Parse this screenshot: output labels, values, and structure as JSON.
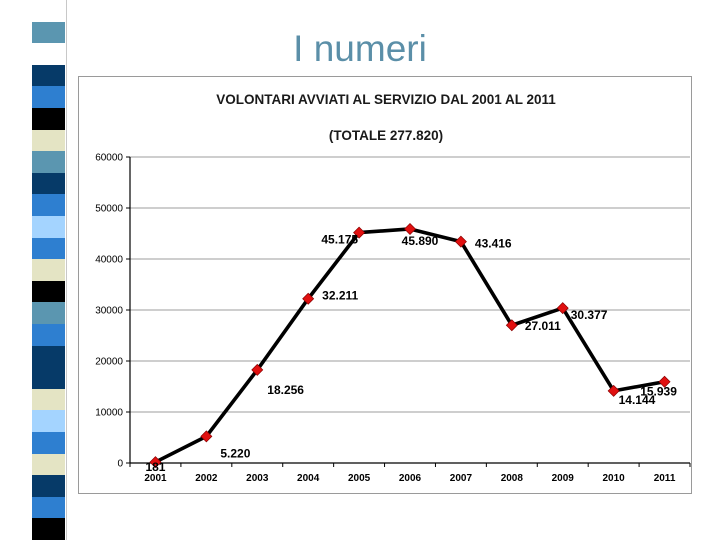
{
  "slide_title": "I numeri",
  "stripe_colors": [
    "#ffffff",
    "#5b96b0",
    "#ffffff",
    "#063a68",
    "#2e7fd0",
    "#000000",
    "#e4e4c4",
    "#5b96b0",
    "#063a68",
    "#2e7fd0",
    "#a4d4ff",
    "#2e7fd0",
    "#e4e4c4",
    "#000000",
    "#5b96b0",
    "#2e7fd0",
    "#063a68",
    "#063a68",
    "#e4e4c4",
    "#a4d4ff",
    "#2e7fd0",
    "#e4e4c4",
    "#063a68",
    "#2e7fd0",
    "#000000"
  ],
  "colors": {
    "line": "#000000",
    "marker": "#e01010",
    "grid": "#9c9c9c"
  },
  "chart_data": {
    "type": "line",
    "title": "VOLONTARI AVVIATI AL SERVIZIO DAL 2001 AL 2011",
    "subtitle": "(TOTALE 277.820)",
    "xlabel": "",
    "ylabel": "",
    "ylim": [
      0,
      60000
    ],
    "y_ticks": [
      0,
      10000,
      20000,
      30000,
      40000,
      50000,
      60000
    ],
    "y_tick_labels": [
      "0",
      "10000",
      "20000",
      "30000",
      "40000",
      "50000",
      "60000"
    ],
    "grid": true,
    "categories": [
      "2001",
      "2002",
      "2003",
      "2004",
      "2005",
      "2006",
      "2007",
      "2008",
      "2009",
      "2010",
      "2011"
    ],
    "values": [
      181,
      5220,
      18256,
      32211,
      45175,
      45890,
      43416,
      27011,
      30377,
      14144,
      15939
    ],
    "data_labels": [
      "181",
      "5.220",
      "18.256",
      "32.211",
      "45.175",
      "45.890",
      "43.416",
      "27.011",
      "30.377",
      "14.144",
      "15.939"
    ]
  }
}
